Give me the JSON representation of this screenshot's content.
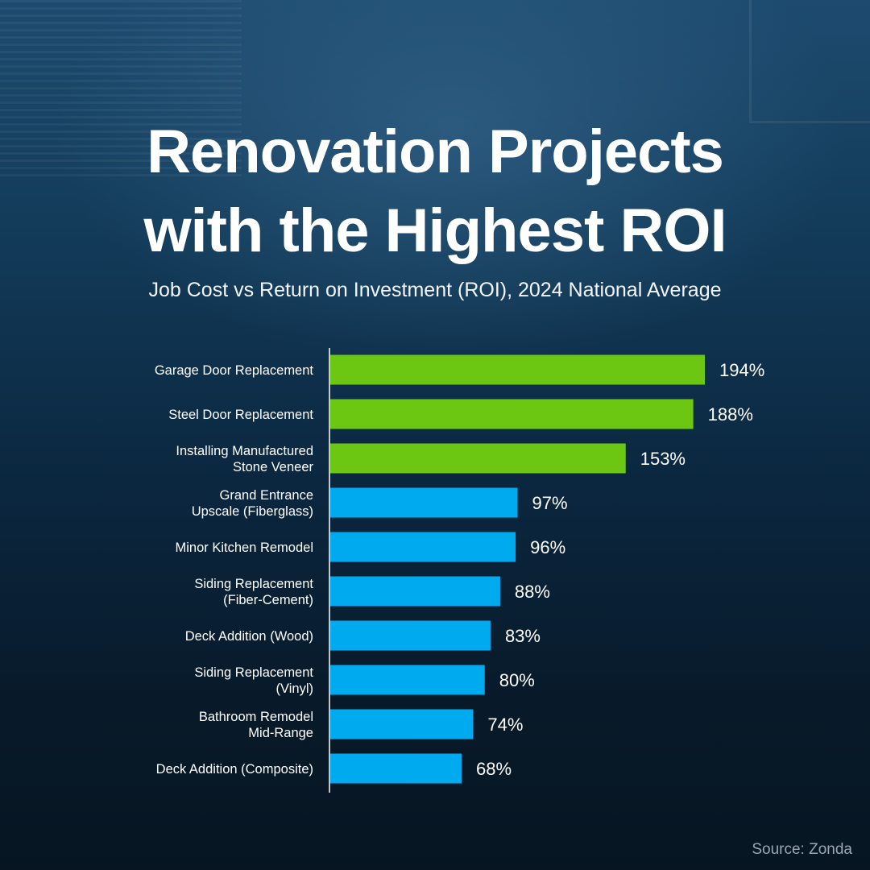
{
  "title_line1": "Renovation Projects",
  "title_line2": "with the Highest ROI",
  "subtitle": "Job Cost vs Return on Investment (ROI), 2024 National Average",
  "source": "Source: Zonda",
  "colors": {
    "highlight": "#6cc712",
    "standard": "#00aaee"
  },
  "chart_data": {
    "type": "bar",
    "orientation": "horizontal",
    "title": "",
    "xlabel": "",
    "ylabel": "",
    "xlim": [
      0,
      200
    ],
    "grid": false,
    "categories": [
      [
        "Garage Door Replacement"
      ],
      [
        "Steel Door Replacement"
      ],
      [
        "Installing Manufactured",
        "Stone Veneer"
      ],
      [
        "Grand Entrance",
        "Upscale (Fiberglass)"
      ],
      [
        "Minor Kitchen Remodel"
      ],
      [
        "Siding Replacement",
        "(Fiber-Cement)"
      ],
      [
        "Deck Addition (Wood)"
      ],
      [
        "Siding Replacement",
        "(Vinyl)"
      ],
      [
        "Bathroom Remodel",
        "Mid-Range"
      ],
      [
        "Deck Addition (Composite)"
      ]
    ],
    "values": [
      194,
      188,
      153,
      97,
      96,
      88,
      83,
      80,
      74,
      68
    ],
    "value_labels": [
      "194%",
      "188%",
      "153%",
      "97%",
      "96%",
      "88%",
      "83%",
      "80%",
      "74%",
      "68%"
    ],
    "highlighted": [
      true,
      true,
      true,
      false,
      false,
      false,
      false,
      false,
      false,
      false
    ]
  }
}
